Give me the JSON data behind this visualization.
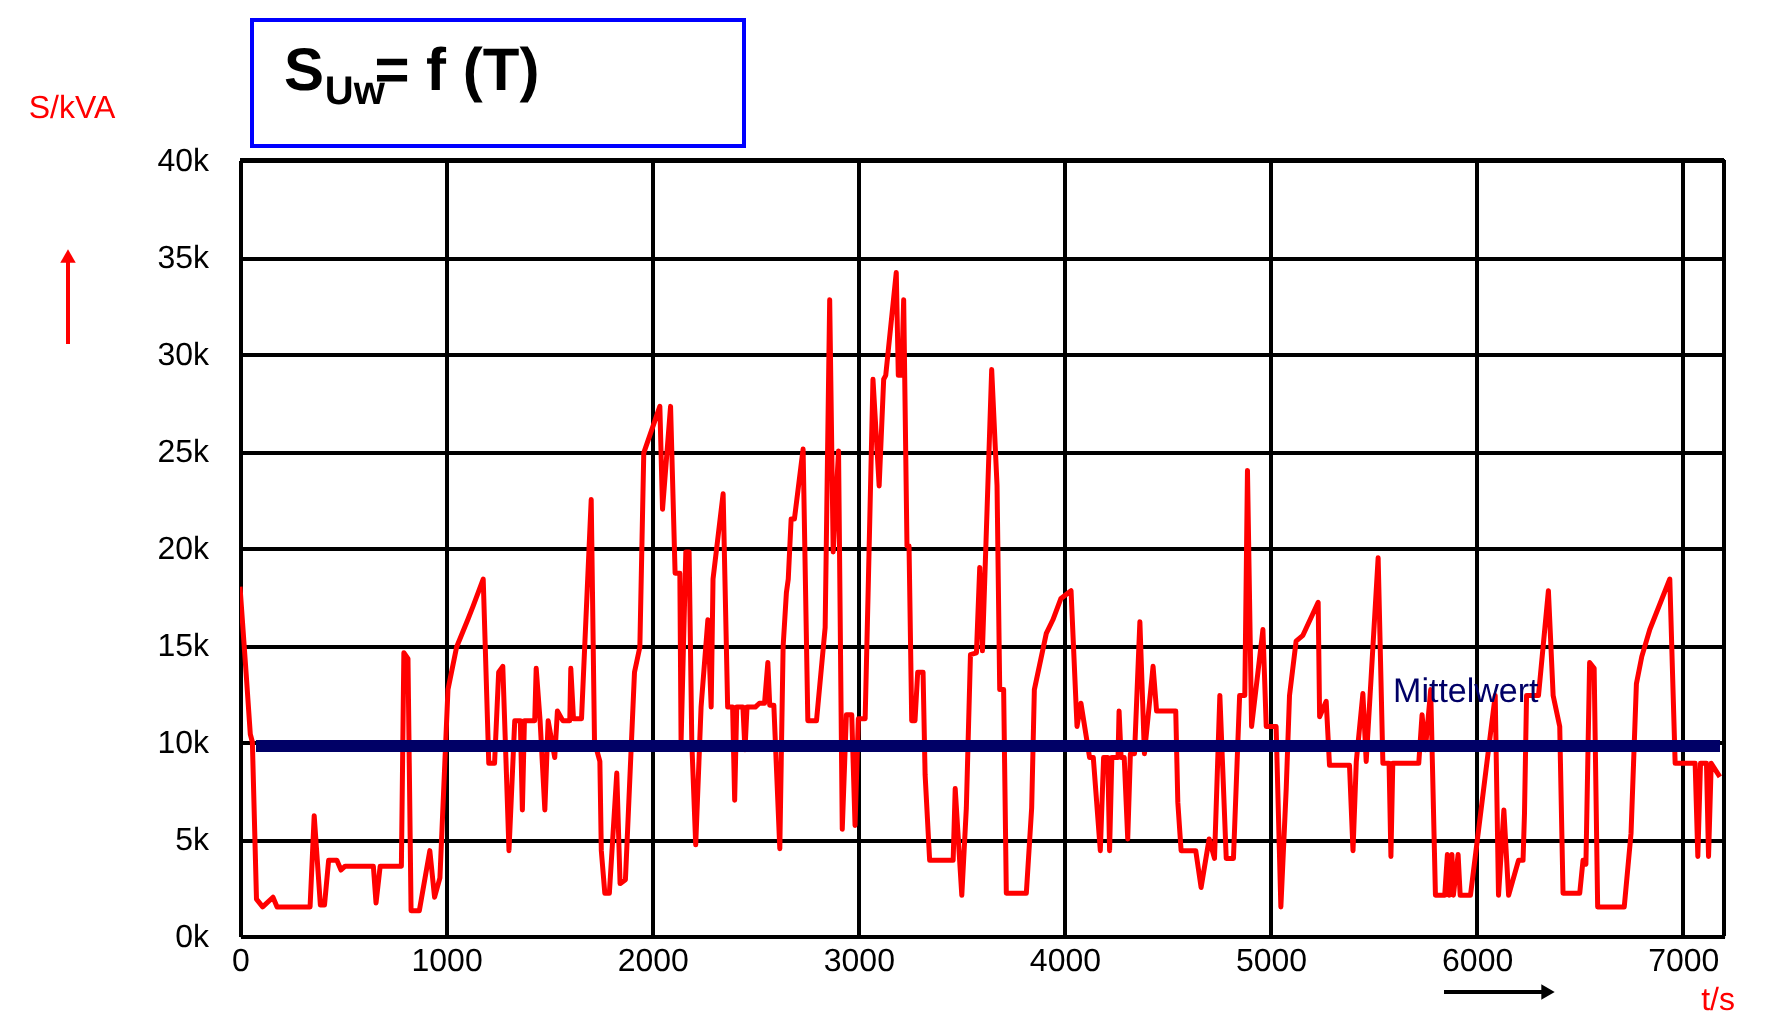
{
  "chart_data": {
    "type": "line",
    "title": "S$_{Uw}$= f (T)",
    "xlabel": "t/s",
    "ylabel": "S/kVA",
    "xlim": [
      0,
      7200
    ],
    "xticks": [
      0,
      1000,
      2000,
      3000,
      4000,
      5000,
      6000,
      7000
    ],
    "ylim": [
      0,
      40000
    ],
    "yticks": [
      {
        "value": 0,
        "label": "0k"
      },
      {
        "value": 5000,
        "label": "5k"
      },
      {
        "value": 10000,
        "label": "10k"
      },
      {
        "value": 15000,
        "label": "15k"
      },
      {
        "value": 20000,
        "label": "20k"
      },
      {
        "value": 25000,
        "label": "25k"
      },
      {
        "value": 30000,
        "label": "30k"
      },
      {
        "value": 35000,
        "label": "35k"
      },
      {
        "value": 40000,
        "label": "40k"
      }
    ],
    "grid": true,
    "marker": "none",
    "line_style": "solid",
    "ref_lines": [
      {
        "axis": "y",
        "value": 9800,
        "label": "Mittelwert",
        "color": "#000066"
      }
    ],
    "series": [
      {
        "color": "#ff0000",
        "x": [
          0,
          30,
          50,
          60,
          80,
          110,
          160,
          180,
          340,
          360,
          390,
          410,
          430,
          470,
          490,
          510,
          647,
          660,
          680,
          783,
          795,
          815,
          830,
          870,
          921,
          944,
          970,
          1009,
          1051,
          1105,
          1131,
          1180,
          1207,
          1235,
          1255,
          1275,
          1290,
          1305,
          1333,
          1360,
          1370,
          1380,
          1430,
          1437,
          1456,
          1479,
          1495,
          1527,
          1540,
          1566,
          1600,
          1605,
          1618,
          1657,
          1704,
          1720,
          1746,
          1753,
          1770,
          1792,
          1828,
          1844,
          1870,
          1914,
          1940,
          1959,
          2037,
          2050,
          2089,
          2111,
          2134,
          2140,
          2163,
          2179,
          2192,
          2211,
          2237,
          2270,
          2286,
          2295,
          2344,
          2366,
          2390,
          2400,
          2410,
          2440,
          2450,
          2460,
          2500,
          2520,
          2545,
          2561,
          2570,
          2590,
          2619,
          2635,
          2651,
          2660,
          2674,
          2690,
          2732,
          2755,
          2797,
          2839,
          2861,
          2878,
          2904,
          2922,
          2942,
          2968,
          2984,
          3000,
          3033,
          3049,
          3071,
          3101,
          3123,
          3133,
          3184,
          3194,
          3210,
          3220,
          3236,
          3246,
          3259,
          3275,
          3288,
          3314,
          3324,
          3346,
          3460,
          3470,
          3502,
          3524,
          3544,
          3573,
          3589,
          3602,
          3647,
          3673,
          3686,
          3705,
          3718,
          3815,
          3841,
          3854,
          3912,
          3944,
          3983,
          4032,
          4061,
          4080,
          4122,
          4140,
          4174,
          4190,
          4210,
          4219,
          4230,
          4260,
          4265,
          4275,
          4290,
          4307,
          4320,
          4340,
          4366,
          4388,
          4430,
          4447,
          4540,
          4550,
          4566,
          4637,
          4663,
          4702,
          4728,
          4754,
          4785,
          4820,
          4850,
          4875,
          4888,
          4908,
          4963,
          4979,
          5027,
          5050,
          5076,
          5092,
          5124,
          5157,
          5231,
          5238,
          5270,
          5286,
          5383,
          5400,
          5416,
          5448,
          5464,
          5522,
          5545,
          5575,
          5584,
          5593,
          5719,
          5735,
          5751,
          5777,
          5800,
          5845,
          5858,
          5866,
          5880,
          5887,
          5910,
          5920,
          5970,
          6090,
          6106,
          6132,
          6155,
          6203,
          6225,
          6232,
          6242,
          6300,
          6348,
          6371,
          6403,
          6419,
          6500,
          6516,
          6530,
          6548,
          6570,
          6587,
          6716,
          6749,
          6775,
          6801,
          6840,
          6937,
          6963,
          7060,
          7073,
          7086,
          7115,
          7125,
          7138,
          7180
        ],
        "values": [
          18000,
          13500,
          10400,
          10000,
          1900,
          1500,
          2000,
          1500,
          1500,
          6200,
          1600,
          1600,
          3900,
          3900,
          3400,
          3600,
          3600,
          1700,
          3600,
          3600,
          14600,
          14300,
          1300,
          1300,
          4400,
          2000,
          3000,
          12700,
          14900,
          16300,
          17000,
          18400,
          8900,
          8900,
          13600,
          13900,
          9200,
          4400,
          11100,
          11100,
          6500,
          11100,
          11100,
          13800,
          11100,
          6500,
          11100,
          9200,
          11600,
          11100,
          11100,
          13800,
          11200,
          11200,
          22500,
          10000,
          9000,
          4400,
          2200,
          2200,
          8400,
          2700,
          2900,
          13600,
          14900,
          24900,
          27300,
          22000,
          27300,
          18700,
          18700,
          10000,
          19800,
          19800,
          10000,
          4700,
          11800,
          16300,
          11800,
          18400,
          22800,
          11800,
          11800,
          7000,
          11800,
          11800,
          9600,
          11800,
          11800,
          12000,
          12000,
          14100,
          11900,
          11900,
          4500,
          14900,
          17700,
          18400,
          21500,
          21500,
          25100,
          11100,
          11100,
          15900,
          32800,
          19800,
          25000,
          5500,
          11400,
          11400,
          5700,
          11200,
          11200,
          18400,
          28700,
          23200,
          28700,
          28900,
          34200,
          28900,
          28900,
          32800,
          20100,
          20100,
          11100,
          11100,
          13600,
          13600,
          8300,
          3900,
          3900,
          7600,
          2100,
          6600,
          14500,
          14600,
          19000,
          14700,
          29200,
          23200,
          12700,
          12700,
          2200,
          2200,
          6600,
          12700,
          15600,
          16300,
          17400,
          17800,
          10800,
          12000,
          9200,
          9200,
          4400,
          9200,
          9200,
          4400,
          9200,
          9200,
          11600,
          9200,
          9200,
          5000,
          9400,
          9400,
          16200,
          9400,
          13900,
          11600,
          11600,
          6900,
          4400,
          4400,
          2500,
          5000,
          4000,
          12400,
          4000,
          4000,
          12400,
          12400,
          24000,
          10800,
          15800,
          10800,
          10800,
          1500,
          7600,
          12400,
          15200,
          15500,
          17200,
          11300,
          12100,
          8800,
          8800,
          4400,
          9000,
          12500,
          9000,
          19500,
          8900,
          8900,
          4100,
          8900,
          8900,
          11400,
          9600,
          12700,
          2100,
          2100,
          4200,
          2100,
          4200,
          2100,
          4200,
          2100,
          2100,
          12400,
          2100,
          6500,
          2100,
          3900,
          3900,
          6300,
          12400,
          12400,
          17800,
          12400,
          10800,
          2200,
          2200,
          3900,
          3700,
          14100,
          13800,
          1500,
          1500,
          5300,
          13000,
          14400,
          15800,
          18400,
          8900,
          8900,
          4100,
          8900,
          8900,
          4100,
          8900,
          8200
        ]
      }
    ]
  }
}
